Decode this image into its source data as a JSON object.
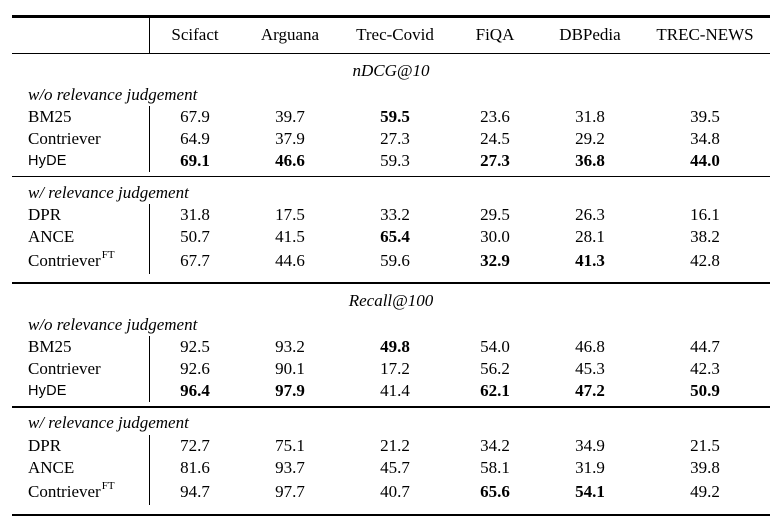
{
  "page": {
    "background_color": "#ffffff",
    "text_color": "#000000",
    "rule_color": "#000000"
  },
  "table": {
    "header": {
      "columns": [
        "Scifact",
        "Arguana",
        "Trec-Covid",
        "FiQA",
        "DBPedia",
        "TREC-NEWS"
      ]
    },
    "sections": [
      {
        "title": "nDCG@10",
        "groups": [
          {
            "label": "w/o relevance judgement",
            "rows": [
              {
                "name": "BM25",
                "sup": "",
                "font": "serif",
                "values": [
                  {
                    "v": "67.9",
                    "b": false
                  },
                  {
                    "v": "39.7",
                    "b": false
                  },
                  {
                    "v": "59.5",
                    "b": true
                  },
                  {
                    "v": "23.6",
                    "b": false
                  },
                  {
                    "v": "31.8",
                    "b": false
                  },
                  {
                    "v": "39.5",
                    "b": false
                  }
                ]
              },
              {
                "name": "Contriever",
                "sup": "",
                "font": "serif",
                "values": [
                  {
                    "v": "64.9",
                    "b": false
                  },
                  {
                    "v": "37.9",
                    "b": false
                  },
                  {
                    "v": "27.3",
                    "b": false
                  },
                  {
                    "v": "24.5",
                    "b": false
                  },
                  {
                    "v": "29.2",
                    "b": false
                  },
                  {
                    "v": "34.8",
                    "b": false
                  }
                ]
              },
              {
                "name": "HyDE",
                "sup": "",
                "font": "sans",
                "values": [
                  {
                    "v": "69.1",
                    "b": true
                  },
                  {
                    "v": "46.6",
                    "b": true
                  },
                  {
                    "v": "59.3",
                    "b": false
                  },
                  {
                    "v": "27.3",
                    "b": true
                  },
                  {
                    "v": "36.8",
                    "b": true
                  },
                  {
                    "v": "44.0",
                    "b": true
                  }
                ]
              }
            ]
          },
          {
            "label": "w/ relevance judgement",
            "rows": [
              {
                "name": "DPR",
                "sup": "",
                "font": "serif",
                "values": [
                  {
                    "v": "31.8",
                    "b": false
                  },
                  {
                    "v": "17.5",
                    "b": false
                  },
                  {
                    "v": "33.2",
                    "b": false
                  },
                  {
                    "v": "29.5",
                    "b": false
                  },
                  {
                    "v": "26.3",
                    "b": false
                  },
                  {
                    "v": "16.1",
                    "b": false
                  }
                ]
              },
              {
                "name": "ANCE",
                "sup": "",
                "font": "serif",
                "values": [
                  {
                    "v": "50.7",
                    "b": false
                  },
                  {
                    "v": "41.5",
                    "b": false
                  },
                  {
                    "v": "65.4",
                    "b": true
                  },
                  {
                    "v": "30.0",
                    "b": false
                  },
                  {
                    "v": "28.1",
                    "b": false
                  },
                  {
                    "v": "38.2",
                    "b": false
                  }
                ]
              },
              {
                "name": "Contriever",
                "sup": "FT",
                "font": "serif",
                "values": [
                  {
                    "v": "67.7",
                    "b": false
                  },
                  {
                    "v": "44.6",
                    "b": false
                  },
                  {
                    "v": "59.6",
                    "b": false
                  },
                  {
                    "v": "32.9",
                    "b": true
                  },
                  {
                    "v": "41.3",
                    "b": true
                  },
                  {
                    "v": "42.8",
                    "b": false
                  }
                ]
              }
            ]
          }
        ]
      },
      {
        "title": "Recall@100",
        "groups": [
          {
            "label": "w/o relevance judgement",
            "rows": [
              {
                "name": "BM25",
                "sup": "",
                "font": "serif",
                "values": [
                  {
                    "v": "92.5",
                    "b": false
                  },
                  {
                    "v": "93.2",
                    "b": false
                  },
                  {
                    "v": "49.8",
                    "b": true
                  },
                  {
                    "v": "54.0",
                    "b": false
                  },
                  {
                    "v": "46.8",
                    "b": false
                  },
                  {
                    "v": "44.7",
                    "b": false
                  }
                ]
              },
              {
                "name": "Contriever",
                "sup": "",
                "font": "serif",
                "values": [
                  {
                    "v": "92.6",
                    "b": false
                  },
                  {
                    "v": "90.1",
                    "b": false
                  },
                  {
                    "v": "17.2",
                    "b": false
                  },
                  {
                    "v": "56.2",
                    "b": false
                  },
                  {
                    "v": "45.3",
                    "b": false
                  },
                  {
                    "v": "42.3",
                    "b": false
                  }
                ]
              },
              {
                "name": "HyDE",
                "sup": "",
                "font": "sans",
                "values": [
                  {
                    "v": "96.4",
                    "b": true
                  },
                  {
                    "v": "97.9",
                    "b": true
                  },
                  {
                    "v": "41.4",
                    "b": false
                  },
                  {
                    "v": "62.1",
                    "b": true
                  },
                  {
                    "v": "47.2",
                    "b": true
                  },
                  {
                    "v": "50.9",
                    "b": true
                  }
                ]
              }
            ]
          },
          {
            "label": "w/ relevance judgement",
            "rows": [
              {
                "name": "DPR",
                "sup": "",
                "font": "serif",
                "values": [
                  {
                    "v": "72.7",
                    "b": false
                  },
                  {
                    "v": "75.1",
                    "b": false
                  },
                  {
                    "v": "21.2",
                    "b": false
                  },
                  {
                    "v": "34.2",
                    "b": false
                  },
                  {
                    "v": "34.9",
                    "b": false
                  },
                  {
                    "v": "21.5",
                    "b": false
                  }
                ]
              },
              {
                "name": "ANCE",
                "sup": "",
                "font": "serif",
                "values": [
                  {
                    "v": "81.6",
                    "b": false
                  },
                  {
                    "v": "93.7",
                    "b": false
                  },
                  {
                    "v": "45.7",
                    "b": false
                  },
                  {
                    "v": "58.1",
                    "b": false
                  },
                  {
                    "v": "31.9",
                    "b": false
                  },
                  {
                    "v": "39.8",
                    "b": false
                  }
                ]
              },
              {
                "name": "Contriever",
                "sup": "FT",
                "font": "serif",
                "values": [
                  {
                    "v": "94.7",
                    "b": false
                  },
                  {
                    "v": "97.7",
                    "b": false
                  },
                  {
                    "v": "40.7",
                    "b": false
                  },
                  {
                    "v": "65.6",
                    "b": true
                  },
                  {
                    "v": "54.1",
                    "b": true
                  },
                  {
                    "v": "49.2",
                    "b": false
                  }
                ]
              }
            ]
          }
        ]
      }
    ]
  }
}
